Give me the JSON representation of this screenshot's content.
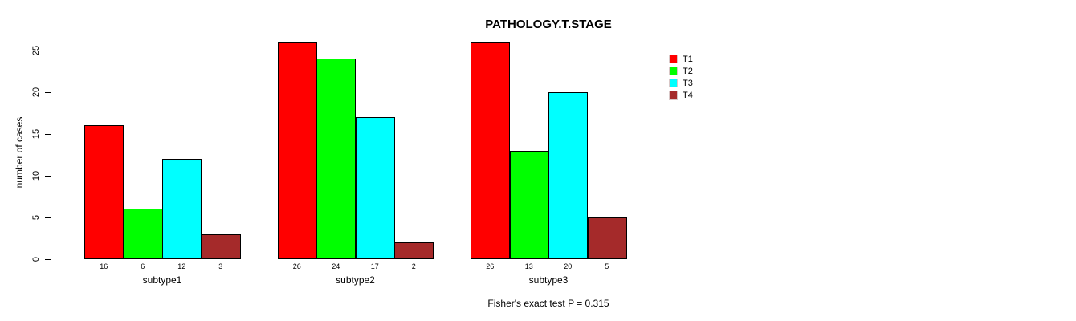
{
  "chart_data": {
    "type": "bar",
    "title": "PATHOLOGY.T.STAGE",
    "ylabel": "number of cases",
    "xlabel": "",
    "categories": [
      "subtype1",
      "subtype2",
      "subtype3"
    ],
    "series": [
      {
        "name": "T1",
        "color": "#FF0000",
        "values": [
          16,
          26,
          26
        ]
      },
      {
        "name": "T2",
        "color": "#00FF00",
        "values": [
          6,
          24,
          13
        ]
      },
      {
        "name": "T3",
        "color": "#00FFFF",
        "values": [
          12,
          17,
          20
        ]
      },
      {
        "name": "T4",
        "color": "#A52A2A",
        "values": [
          3,
          2,
          5
        ]
      }
    ],
    "bar_value_labels": [
      [
        "16",
        "6",
        "12",
        "3"
      ],
      [
        "26",
        "24",
        "17",
        "2"
      ],
      [
        "26",
        "13",
        "20",
        "5"
      ]
    ],
    "yticks": [
      0,
      5,
      10,
      15,
      20,
      25
    ],
    "ylim": [
      0,
      26
    ],
    "grid": false,
    "legend_position": "top-right",
    "legend_entries": [
      "T1",
      "T2",
      "T3",
      "T4"
    ],
    "annotation": "Fisher's exact test P = 0.315"
  }
}
